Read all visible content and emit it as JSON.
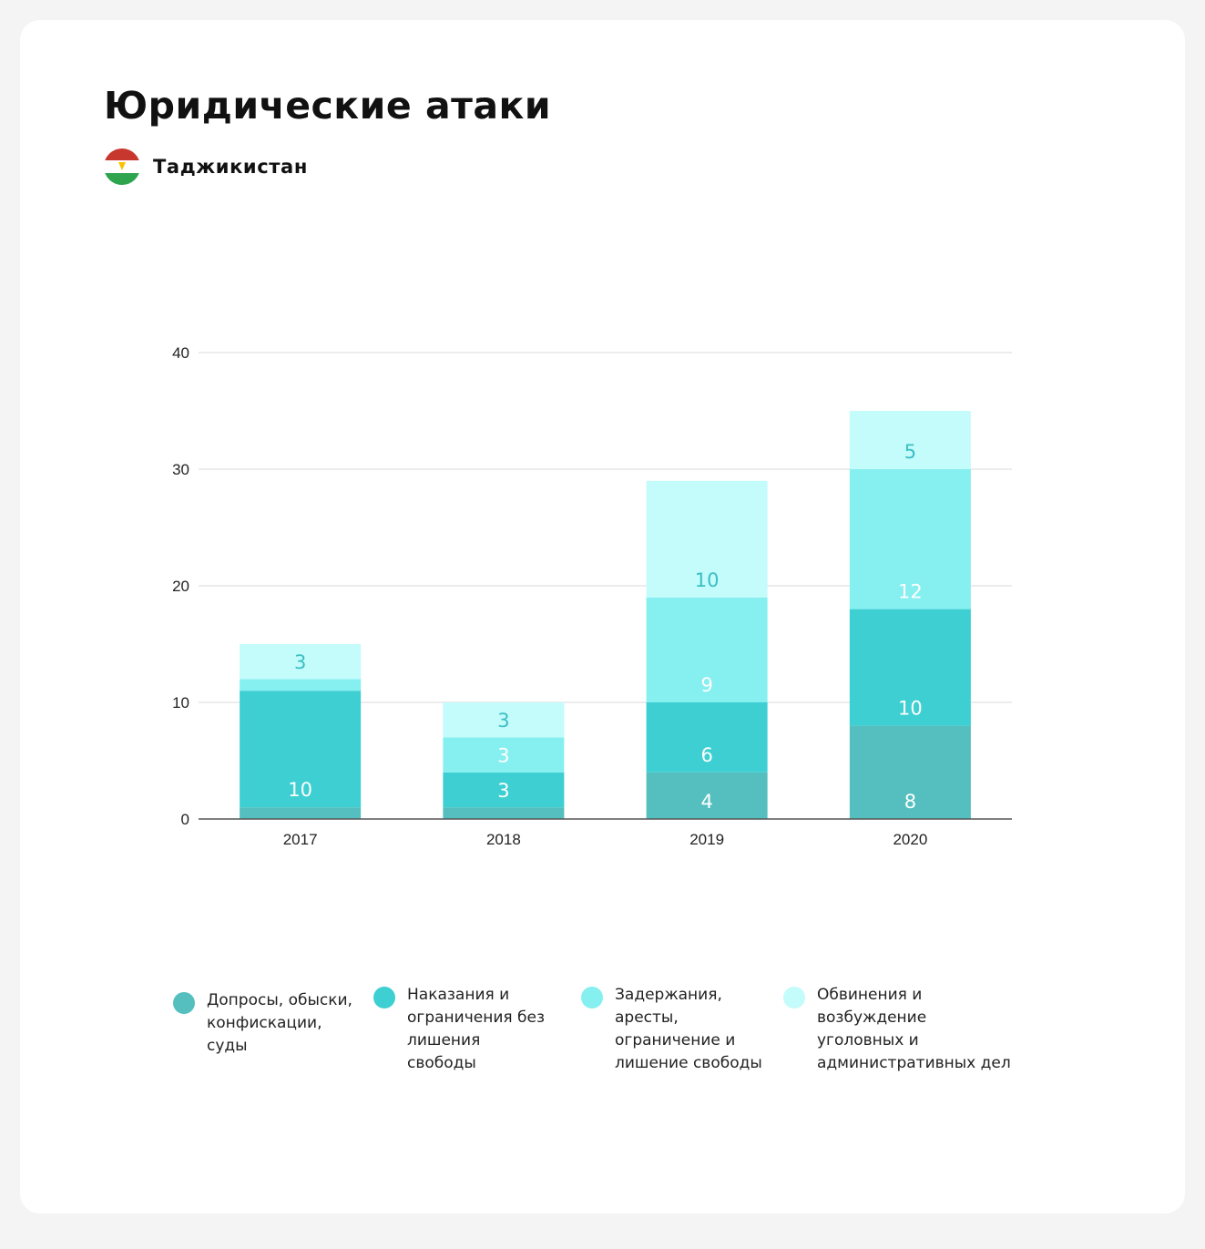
{
  "title": "Юридические атаки",
  "country": {
    "name": "Таджикистан",
    "flag_colors": [
      "#c8372d",
      "#ffffff",
      "#2ea44f"
    ]
  },
  "chart_data": {
    "type": "bar",
    "stacked": true,
    "categories": [
      "2017",
      "2018",
      "2019",
      "2020"
    ],
    "ylim": [
      0,
      40
    ],
    "yticks": [
      0,
      10,
      20,
      30,
      40
    ],
    "grid": true,
    "legend_position": "bottom",
    "series": [
      {
        "name": "Допросы, обыски, конфискации, суды",
        "color": "#55bfbf",
        "label_color": "#ffffff",
        "values": [
          1,
          1,
          4,
          8
        ],
        "labels": [
          "",
          "",
          "4",
          "8"
        ]
      },
      {
        "name": "Наказания и ограничения без лишения свободы",
        "color": "#3ecfd3",
        "label_color": "#ffffff",
        "values": [
          10,
          3,
          6,
          10
        ],
        "labels": [
          "10",
          "3",
          "6",
          "10"
        ]
      },
      {
        "name": "Задержания, аресты, ограничение и лишение свободы",
        "color": "#86eff0",
        "label_color": "#ffffff",
        "values": [
          1,
          3,
          9,
          12
        ],
        "labels": [
          "",
          "3",
          "9",
          "12"
        ]
      },
      {
        "name": "Обвинения и возбуждение уголовных и административных дел",
        "color": "#c4fbfb",
        "label_color": "#3bbfc4",
        "values": [
          3,
          3,
          10,
          5
        ],
        "labels": [
          "3",
          "3",
          "10",
          "5"
        ]
      }
    ]
  },
  "legend": [
    {
      "lines": [
        "Допросы, обыски,",
        "конфискации,",
        "суды"
      ],
      "color": "#55bfbf"
    },
    {
      "lines": [
        "Наказания и",
        "ограничения без",
        "лишения",
        "свободы"
      ],
      "color": "#3ecfd3"
    },
    {
      "lines": [
        "Задержания,",
        "аресты,",
        "ограничение и",
        "лишение свободы"
      ],
      "color": "#86eff0"
    },
    {
      "lines": [
        "Обвинения и",
        "возбуждение",
        "уголовных и",
        "административных дел"
      ],
      "color": "#c4fbfb"
    }
  ]
}
